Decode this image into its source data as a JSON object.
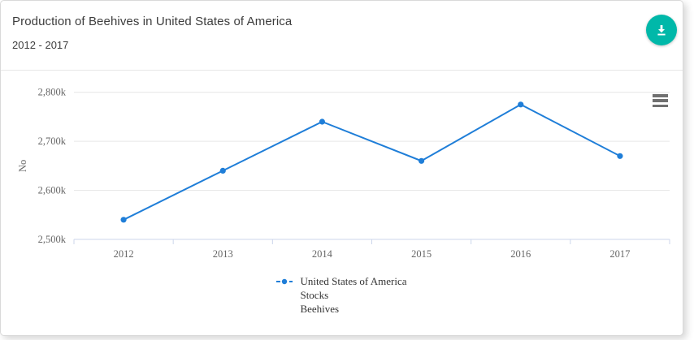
{
  "header": {
    "title": "Production of Beehives in United States of America",
    "subtitle": "2012 - 2017"
  },
  "toolbar": {
    "download_icon": "download-icon",
    "menu_icon": "hamburger-menu-icon"
  },
  "chart_data": {
    "type": "line",
    "title": "",
    "xlabel": "",
    "ylabel": "No",
    "categories": [
      "2012",
      "2013",
      "2014",
      "2015",
      "2016",
      "2017"
    ],
    "series": [
      {
        "name": "United States of America Stocks Beehives",
        "values_k": [
          2540,
          2640,
          2740,
          2660,
          2775,
          2670
        ],
        "color": "#1f7ed8",
        "marker": "circle"
      }
    ],
    "unit": "k",
    "ylim_k": [
      2500,
      2800
    ],
    "yticks_k": [
      2500,
      2600,
      2700,
      2800
    ],
    "ytick_labels": [
      "2,500k",
      "2,600k",
      "2,700k",
      "2,800k"
    ],
    "grid": true,
    "legend_position": "bottom",
    "legend_lines": [
      "United States of America",
      "Stocks",
      "Beehives"
    ]
  },
  "colors": {
    "accent_teal": "#00b8a9",
    "line": "#1f7ed8",
    "grid": "#e6e6e6",
    "axis_line": "#ccd6eb",
    "axis_label": "#666666",
    "title_text": "#3d3d3d"
  }
}
